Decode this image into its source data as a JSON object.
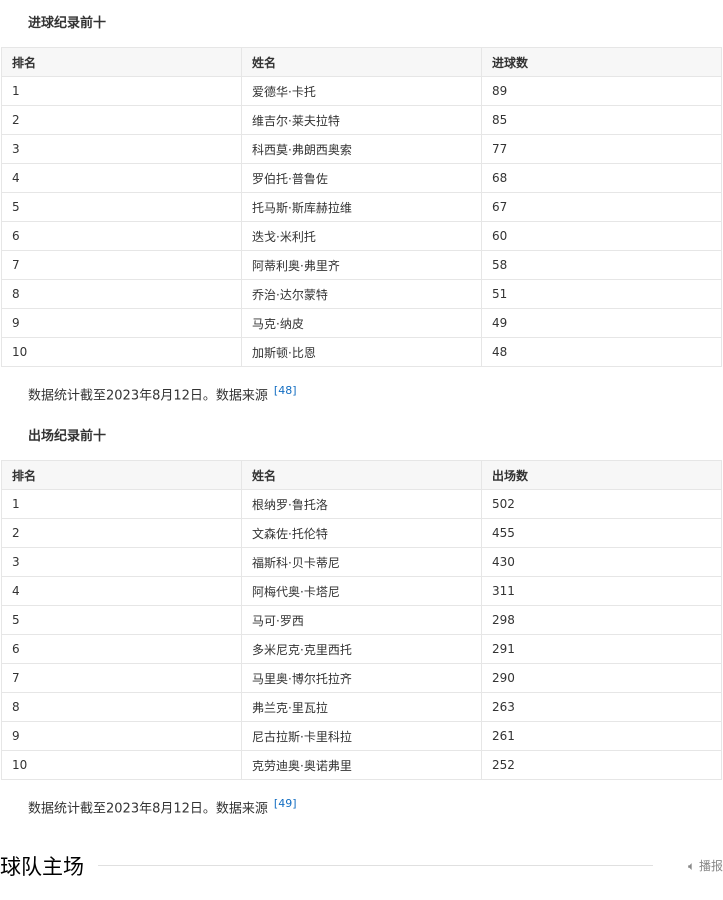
{
  "goals": {
    "title": "进球纪录前十",
    "headers": [
      "排名",
      "姓名",
      "进球数"
    ],
    "rows": [
      [
        "1",
        "爱德华·卡托",
        "89"
      ],
      [
        "2",
        "维吉尔·莱夫拉特",
        "85"
      ],
      [
        "3",
        "科西莫·弗朗西奥索",
        "77"
      ],
      [
        "4",
        "罗伯托·普鲁佐",
        "68"
      ],
      [
        "5",
        "托马斯·斯库赫拉维",
        "67"
      ],
      [
        "6",
        "迭戈·米利托",
        "60"
      ],
      [
        "7",
        "阿蒂利奥·弗里齐",
        "58"
      ],
      [
        "8",
        "乔治·达尔蒙特",
        "51"
      ],
      [
        "9",
        "马克·纳皮",
        "49"
      ],
      [
        "10",
        "加斯顿·比恩",
        "48"
      ]
    ],
    "note": "数据统计截至2023年8月12日。数据来源",
    "ref": "[48]"
  },
  "apps": {
    "title": "出场纪录前十",
    "headers": [
      "排名",
      "姓名",
      "出场数"
    ],
    "rows": [
      [
        "1",
        "根纳罗·鲁托洛",
        "502"
      ],
      [
        "2",
        "文森佐·托伦特",
        "455"
      ],
      [
        "3",
        "福斯科·贝卡蒂尼",
        "430"
      ],
      [
        "4",
        "阿梅代奥·卡塔尼",
        "311"
      ],
      [
        "5",
        "马可·罗西",
        "298"
      ],
      [
        "6",
        "多米尼克·克里西托",
        "291"
      ],
      [
        "7",
        "马里奥·博尔托拉齐",
        "290"
      ],
      [
        "8",
        "弗兰克·里瓦拉",
        "263"
      ],
      [
        "9",
        "尼古拉斯·卡里科拉",
        "261"
      ],
      [
        "10",
        "克劳迪奥·奥诺弗里",
        "252"
      ]
    ],
    "note": "数据统计截至2023年8月12日。数据来源",
    "ref": "[49]"
  },
  "section": {
    "title": "球队主场",
    "report_label": "播报",
    "report_icon": "speaker-icon"
  }
}
